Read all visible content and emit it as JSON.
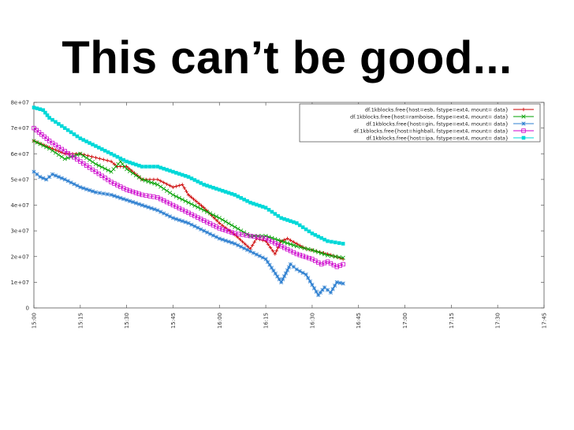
{
  "slide": {
    "title": "This can’t be good..."
  },
  "chart_data": {
    "type": "line",
    "title": "",
    "xlabel": "",
    "ylabel": "",
    "xlim": [
      0,
      165
    ],
    "ylim": [
      0,
      80000000
    ],
    "grid": false,
    "legend_position": "top-right",
    "x_ticks": [
      {
        "v": 0,
        "label": "15:00"
      },
      {
        "v": 15,
        "label": "15:15"
      },
      {
        "v": 30,
        "label": "15:30"
      },
      {
        "v": 45,
        "label": "15:45"
      },
      {
        "v": 60,
        "label": "16:00"
      },
      {
        "v": 75,
        "label": "16:15"
      },
      {
        "v": 90,
        "label": "16:30"
      },
      {
        "v": 105,
        "label": "16:45"
      },
      {
        "v": 120,
        "label": "17:00"
      },
      {
        "v": 135,
        "label": "17:15"
      },
      {
        "v": 150,
        "label": "17:30"
      },
      {
        "v": 165,
        "label": "17:45"
      }
    ],
    "y_ticks": [
      {
        "v": 0,
        "label": "0"
      },
      {
        "v": 10000000,
        "label": "1e+07"
      },
      {
        "v": 20000000,
        "label": "2e+07"
      },
      {
        "v": 30000000,
        "label": "3e+07"
      },
      {
        "v": 40000000,
        "label": "4e+07"
      },
      {
        "v": 50000000,
        "label": "5e+07"
      },
      {
        "v": 60000000,
        "label": "6e+07"
      },
      {
        "v": 70000000,
        "label": "7e+07"
      },
      {
        "v": 80000000,
        "label": "8e+07"
      }
    ],
    "series": [
      {
        "name": "df.1kblocks.free{host=esb, fstype=ext4, mount=          data}",
        "color": "#cc0000",
        "marker": "plus",
        "x": [
          0,
          5,
          10,
          15,
          20,
          25,
          27,
          30,
          35,
          40,
          45,
          48,
          50,
          55,
          60,
          65,
          70,
          72,
          75,
          78,
          80,
          82,
          85,
          88,
          90,
          95,
          100
        ],
        "y": [
          65000000,
          62500000,
          60000000,
          60000000,
          58500000,
          57000000,
          55000000,
          55000000,
          50000000,
          50000000,
          47000000,
          48000000,
          44000000,
          39000000,
          33000000,
          28500000,
          23000000,
          27000000,
          26000000,
          21000000,
          26000000,
          27000000,
          25000000,
          23000000,
          22500000,
          21000000,
          19000000
        ]
      },
      {
        "name": "df.1kblocks.free{host=ramboise, fstype=ext4, mount=          data}",
        "color": "#00a000",
        "marker": "cross",
        "x": [
          0,
          5,
          10,
          15,
          20,
          25,
          28,
          30,
          35,
          40,
          45,
          50,
          55,
          60,
          65,
          70,
          75,
          80,
          85,
          90,
          95,
          100
        ],
        "y": [
          65000000,
          62000000,
          58000000,
          60000000,
          56000000,
          53000000,
          57000000,
          54000000,
          50000000,
          48000000,
          44000000,
          41000000,
          38000000,
          35000000,
          31500000,
          28000000,
          28000000,
          26000000,
          24000000,
          22500000,
          20500000,
          19500000
        ]
      },
      {
        "name": "df.1kblocks.free{host=gin, fstype=ext4, mount=          data}",
        "color": "#2d7fd0",
        "marker": "star",
        "x": [
          0,
          2,
          4,
          6,
          10,
          15,
          20,
          25,
          30,
          35,
          40,
          45,
          50,
          55,
          60,
          65,
          70,
          75,
          80,
          83,
          85,
          88,
          90,
          92,
          94,
          96,
          98,
          100
        ],
        "y": [
          53000000,
          51000000,
          50000000,
          52000000,
          50000000,
          47000000,
          45000000,
          44000000,
          42000000,
          40000000,
          38000000,
          35000000,
          33000000,
          30000000,
          27000000,
          25000000,
          22000000,
          19000000,
          10000000,
          17000000,
          15000000,
          13000000,
          9000000,
          5000000,
          8000000,
          6000000,
          10000000,
          9500000
        ]
      },
      {
        "name": "df.1kblocks.free{host=highball, fstype=ext4, mount=          data}",
        "color": "#cc00cc",
        "marker": "square",
        "x": [
          0,
          5,
          10,
          15,
          20,
          25,
          30,
          35,
          40,
          45,
          50,
          55,
          60,
          65,
          70,
          75,
          80,
          85,
          90,
          93,
          95,
          98,
          100
        ],
        "y": [
          70000000,
          65000000,
          61000000,
          57000000,
          53000000,
          49000000,
          46000000,
          44000000,
          43000000,
          40000000,
          37000000,
          34000000,
          31000000,
          29000000,
          28000000,
          27000000,
          24000000,
          21000000,
          19000000,
          17000000,
          18000000,
          16000000,
          17000000
        ]
      },
      {
        "name": "df.1kblocks.free{host=ipa, fstype=ext4, mount=          data}",
        "color": "#00d8d8",
        "marker": "filled-square",
        "x": [
          0,
          3,
          5,
          10,
          15,
          20,
          25,
          30,
          35,
          40,
          45,
          50,
          55,
          60,
          65,
          70,
          75,
          80,
          85,
          90,
          95,
          100
        ],
        "y": [
          78000000,
          77000000,
          74000000,
          70000000,
          66000000,
          63000000,
          60000000,
          57000000,
          55000000,
          55000000,
          53000000,
          51000000,
          48000000,
          46000000,
          44000000,
          41000000,
          39000000,
          35000000,
          33000000,
          29000000,
          26000000,
          25000000
        ]
      }
    ]
  }
}
